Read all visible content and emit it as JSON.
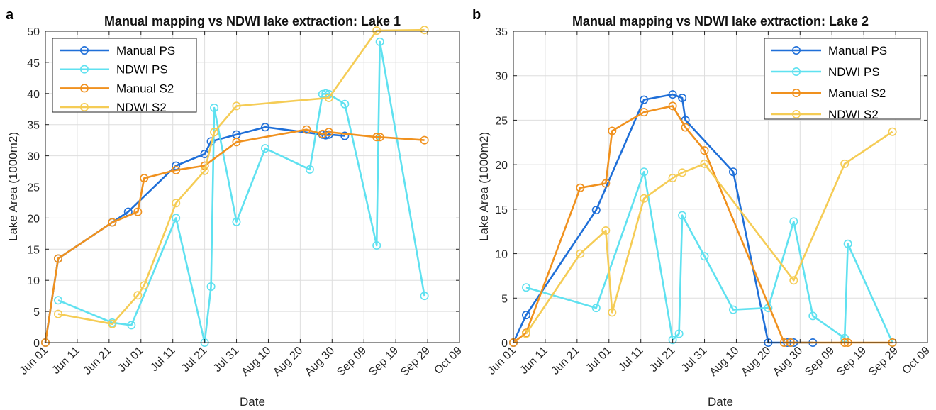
{
  "chart_data": [
    {
      "panel_label": "a",
      "type": "line",
      "title": "Manual mapping vs NDWI lake extraction: Lake 1",
      "xlabel": "Date",
      "ylabel": "Lake Area (1000m2)",
      "x_ticks": [
        "Jun 01",
        "Jun 11",
        "Jun 21",
        "Jul 01",
        "Jul 11",
        "Jul 21",
        "Jul 31",
        "Aug 10",
        "Aug 20",
        "Aug 30",
        "Sep 09",
        "Sep 19",
        "Sep 29",
        "Oct 09"
      ],
      "xlim": [
        "2019-06-01",
        "2019-10-09"
      ],
      "ylim": [
        0,
        50
      ],
      "y_ticks": [
        0,
        5,
        10,
        15,
        20,
        25,
        30,
        35,
        40,
        45,
        50
      ],
      "grid": true,
      "legend_position": "top-left",
      "series": [
        {
          "name": "Manual PS",
          "color": "#1f6fd8",
          "x": [
            "2019-06-01",
            "2019-06-05",
            "2019-06-22",
            "2019-06-27",
            "2019-07-12",
            "2019-07-21",
            "2019-07-23",
            "2019-07-31",
            "2019-08-09",
            "2019-08-27",
            "2019-08-28",
            "2019-08-29",
            "2019-09-03"
          ],
          "y": [
            0,
            13.5,
            19.3,
            21.0,
            28.4,
            30.3,
            32.3,
            33.4,
            34.6,
            33.4,
            33.3,
            33.4,
            33.2
          ]
        },
        {
          "name": "NDWI PS",
          "color": "#5fe1f0",
          "x": [
            "2019-06-05",
            "2019-06-22",
            "2019-06-28",
            "2019-07-12",
            "2019-07-21",
            "2019-07-23",
            "2019-07-24",
            "2019-07-31",
            "2019-08-09",
            "2019-08-23",
            "2019-08-27",
            "2019-08-28",
            "2019-08-29",
            "2019-09-03",
            "2019-09-13",
            "2019-09-14",
            "2019-09-28"
          ],
          "y": [
            6.8,
            3.2,
            2.8,
            20.0,
            0,
            9.0,
            37.7,
            19.4,
            31.2,
            27.8,
            39.9,
            40.0,
            39.9,
            38.3,
            15.6,
            48.3,
            7.5
          ]
        },
        {
          "name": "Manual S2",
          "color": "#f0911e",
          "x": [
            "2019-06-01",
            "2019-06-05",
            "2019-06-22",
            "2019-06-30",
            "2019-07-02",
            "2019-07-12",
            "2019-07-21",
            "2019-07-31",
            "2019-08-22",
            "2019-08-27",
            "2019-08-29",
            "2019-09-13",
            "2019-09-14",
            "2019-09-28"
          ],
          "y": [
            0,
            13.5,
            19.3,
            21.0,
            26.4,
            27.7,
            28.4,
            32.2,
            34.2,
            33.5,
            33.8,
            33.0,
            33.0,
            32.5
          ]
        },
        {
          "name": "NDWI S2",
          "color": "#f5cc55",
          "x": [
            "2019-06-05",
            "2019-06-22",
            "2019-06-30",
            "2019-07-02",
            "2019-07-12",
            "2019-07-21",
            "2019-07-24",
            "2019-07-31",
            "2019-08-29",
            "2019-09-13",
            "2019-09-28"
          ],
          "y": [
            4.6,
            3.0,
            7.6,
            9.2,
            22.4,
            27.6,
            33.8,
            38.0,
            39.3,
            50.1,
            50.2
          ]
        }
      ]
    },
    {
      "panel_label": "b",
      "type": "line",
      "title": "Manual mapping vs NDWI lake extraction: Lake 2",
      "xlabel": "Date",
      "ylabel": "Lake Area (1000m2)",
      "x_ticks": [
        "Jun 01",
        "Jun 11",
        "Jun 21",
        "Jul 01",
        "Jul 11",
        "Jul 21",
        "Jul 31",
        "Aug 10",
        "Aug 20",
        "Aug 30",
        "Sep 09",
        "Sep 19",
        "Sep 29",
        "Oct 09"
      ],
      "xlim": [
        "2019-06-01",
        "2019-10-09"
      ],
      "ylim": [
        0,
        35
      ],
      "y_ticks": [
        0,
        5,
        10,
        15,
        20,
        25,
        30,
        35
      ],
      "grid": true,
      "legend_position": "top-right",
      "series": [
        {
          "name": "Manual PS",
          "color": "#1f6fd8",
          "x": [
            "2019-06-01",
            "2019-06-05",
            "2019-06-27",
            "2019-07-12",
            "2019-07-21",
            "2019-07-24",
            "2019-07-25",
            "2019-08-09",
            "2019-08-20",
            "2019-08-26",
            "2019-08-27",
            "2019-08-28",
            "2019-09-03"
          ],
          "y": [
            0,
            3.1,
            14.9,
            27.3,
            27.9,
            27.5,
            25.0,
            19.2,
            0,
            0,
            0,
            0,
            0
          ]
        },
        {
          "name": "NDWI PS",
          "color": "#5fe1f0",
          "x": [
            "2019-06-05",
            "2019-06-27",
            "2019-07-12",
            "2019-07-21",
            "2019-07-23",
            "2019-07-24",
            "2019-07-31",
            "2019-08-09",
            "2019-08-20",
            "2019-08-28",
            "2019-09-03",
            "2019-09-13",
            "2019-09-14",
            "2019-09-28"
          ],
          "y": [
            6.2,
            3.9,
            19.2,
            0.3,
            1.0,
            14.3,
            9.7,
            3.7,
            3.9,
            13.6,
            3.0,
            0.5,
            11.1,
            0
          ]
        },
        {
          "name": "Manual S2",
          "color": "#f0911e",
          "x": [
            "2019-06-01",
            "2019-06-05",
            "2019-06-22",
            "2019-06-30",
            "2019-07-02",
            "2019-07-12",
            "2019-07-21",
            "2019-07-25",
            "2019-07-31",
            "2019-08-25",
            "2019-08-27",
            "2019-09-13",
            "2019-09-14",
            "2019-09-28"
          ],
          "y": [
            0,
            1.1,
            17.4,
            17.9,
            23.8,
            25.9,
            26.6,
            24.2,
            21.6,
            0,
            0,
            0,
            0,
            0
          ]
        },
        {
          "name": "NDWI S2",
          "color": "#f5cc55",
          "x": [
            "2019-06-05",
            "2019-06-22",
            "2019-06-30",
            "2019-07-02",
            "2019-07-12",
            "2019-07-21",
            "2019-07-24",
            "2019-07-31",
            "2019-08-28",
            "2019-09-13",
            "2019-09-28"
          ],
          "y": [
            1.0,
            10.0,
            12.6,
            3.4,
            16.2,
            18.5,
            19.1,
            20.1,
            7.0,
            20.1,
            23.7
          ]
        }
      ]
    }
  ]
}
